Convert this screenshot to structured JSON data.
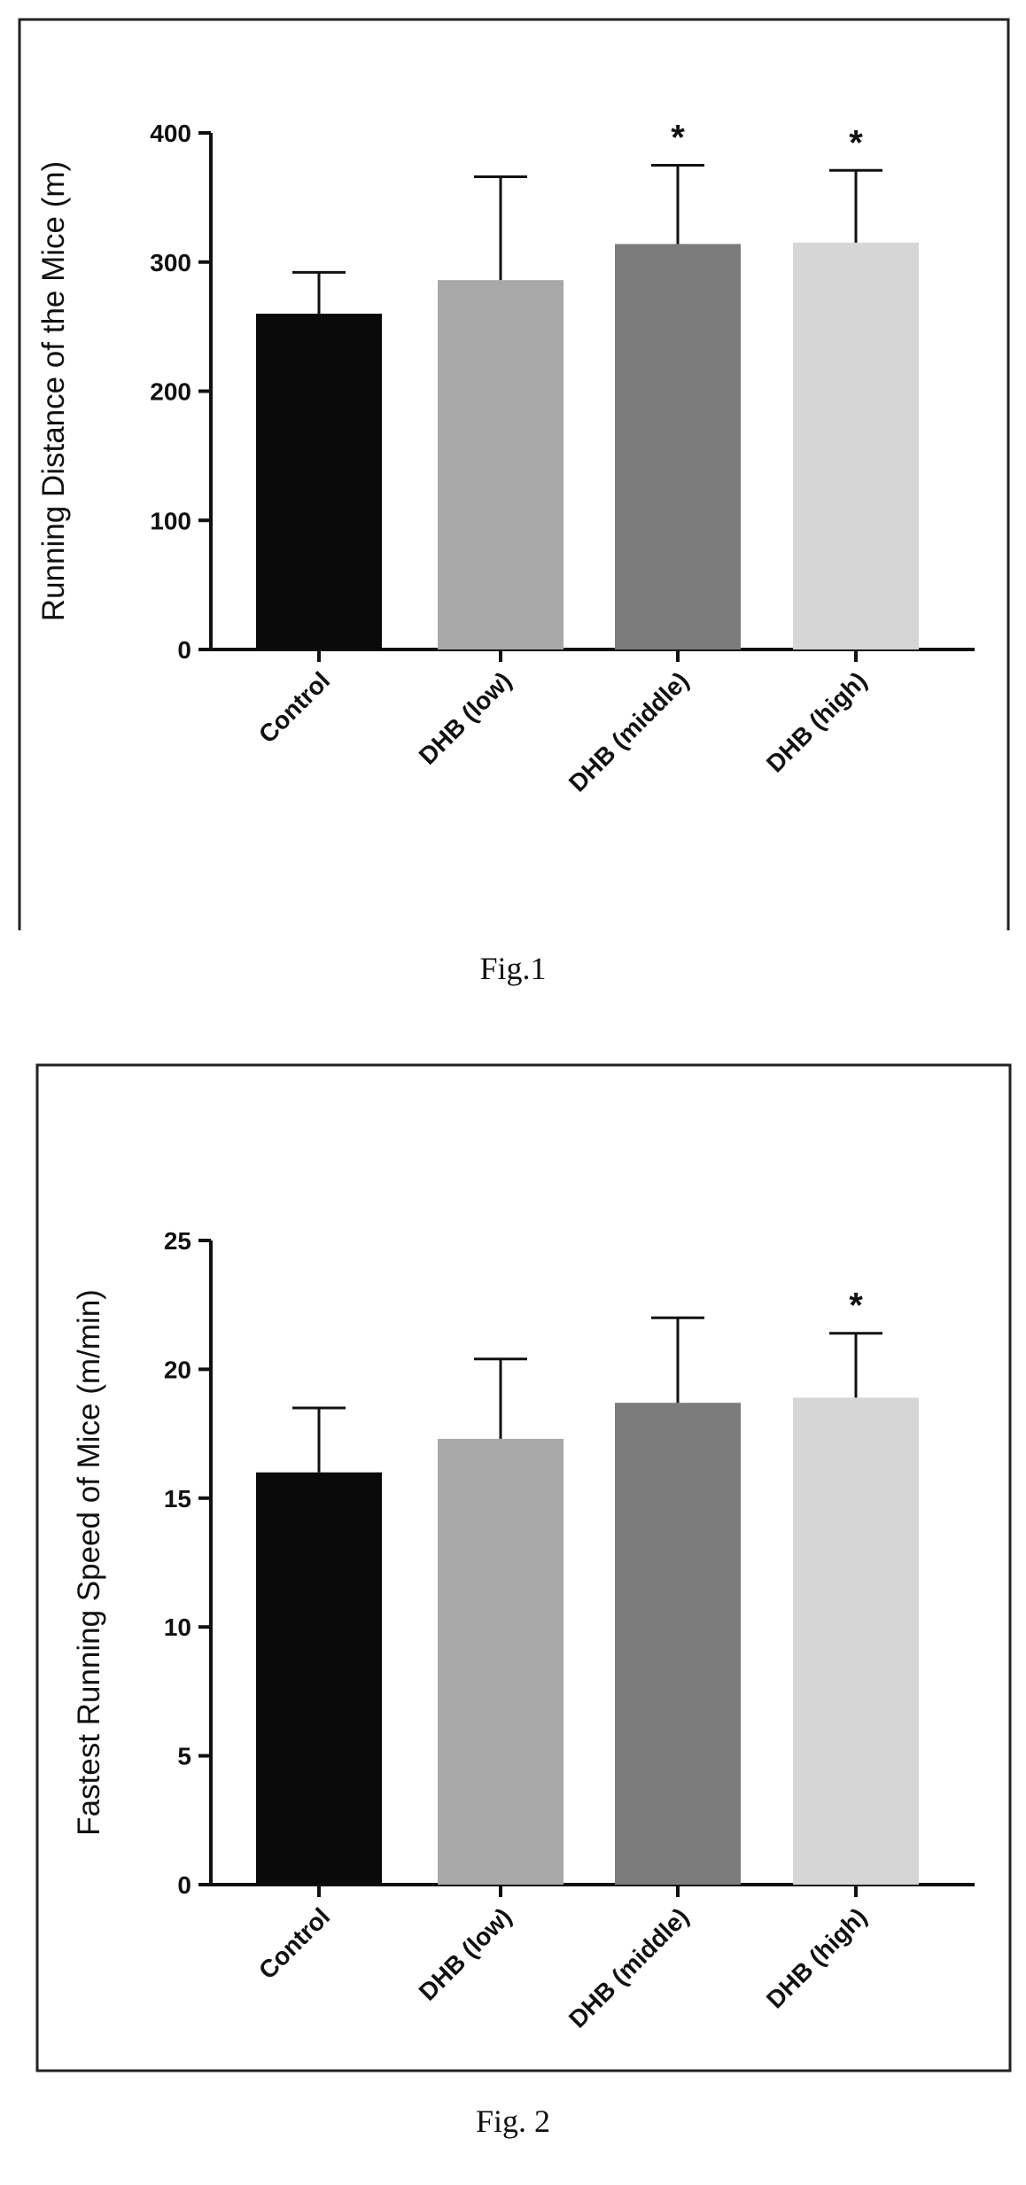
{
  "figures": [
    {
      "caption": "Fig.1",
      "chart_data": {
        "type": "bar",
        "title": "",
        "xlabel": "",
        "ylabel": "Running Distance of the Mice (m)",
        "ylim": [
          0,
          400
        ],
        "yticks": [
          0,
          100,
          200,
          300,
          400
        ],
        "categories": [
          "Control",
          "DHB (low)",
          "DHB (middle)",
          "DHB (high)"
        ],
        "values": [
          260,
          286,
          314,
          315
        ],
        "error_upper": [
          292,
          366,
          375,
          371
        ],
        "significance": [
          "",
          "",
          "*",
          "*"
        ],
        "bar_colors": [
          "#0a0a0a",
          "#a8a8a8",
          "#7c7c7c",
          "#d6d6d6"
        ],
        "grid": false
      }
    },
    {
      "caption": "Fig. 2",
      "chart_data": {
        "type": "bar",
        "title": "",
        "xlabel": "",
        "ylabel": "Fastest Running Speed of Mice (m/min)",
        "ylim": [
          0,
          25
        ],
        "yticks": [
          0,
          5,
          10,
          15,
          20,
          25
        ],
        "categories": [
          "Control",
          "DHB (low)",
          "DHB (middle)",
          "DHB (high)"
        ],
        "values": [
          16,
          17.3,
          18.7,
          18.9
        ],
        "error_upper": [
          18.5,
          20.4,
          22.0,
          21.4
        ],
        "significance": [
          "",
          "",
          "",
          "*"
        ],
        "bar_colors": [
          "#0a0a0a",
          "#a8a8a8",
          "#7c7c7c",
          "#d6d6d6"
        ],
        "grid": false
      }
    }
  ]
}
